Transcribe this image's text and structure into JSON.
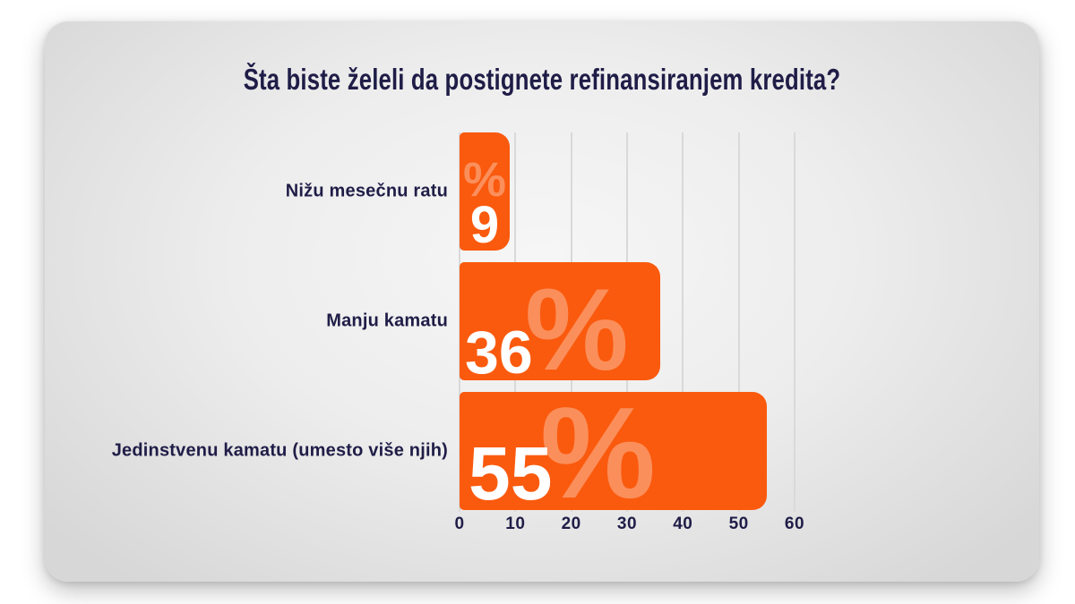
{
  "slide": {
    "background_center": "#f6f6f6",
    "background_edge": "#d7d7d7"
  },
  "chart_data": {
    "type": "bar",
    "orientation": "horizontal",
    "title": "Šta biste želeli da postignete refinansiranjem kredita?",
    "categories": [
      "Nižu mesečnu ratu",
      "Manju kamatu",
      "Jedinstvenu kamatu (umesto više njih)"
    ],
    "values": [
      9,
      36,
      55
    ],
    "value_suffix": "%",
    "x_ticks": [
      0,
      10,
      20,
      30,
      40,
      50,
      60
    ],
    "xlim": [
      0,
      60
    ],
    "grid": true,
    "legend": false,
    "colors": {
      "bar": "#fa5a0e",
      "value_text": "#ffffff",
      "percent_watermark": "rgba(255,255,255,0.32)",
      "label_text": "#1f1d47",
      "gridline": "#d9d9d9"
    }
  }
}
